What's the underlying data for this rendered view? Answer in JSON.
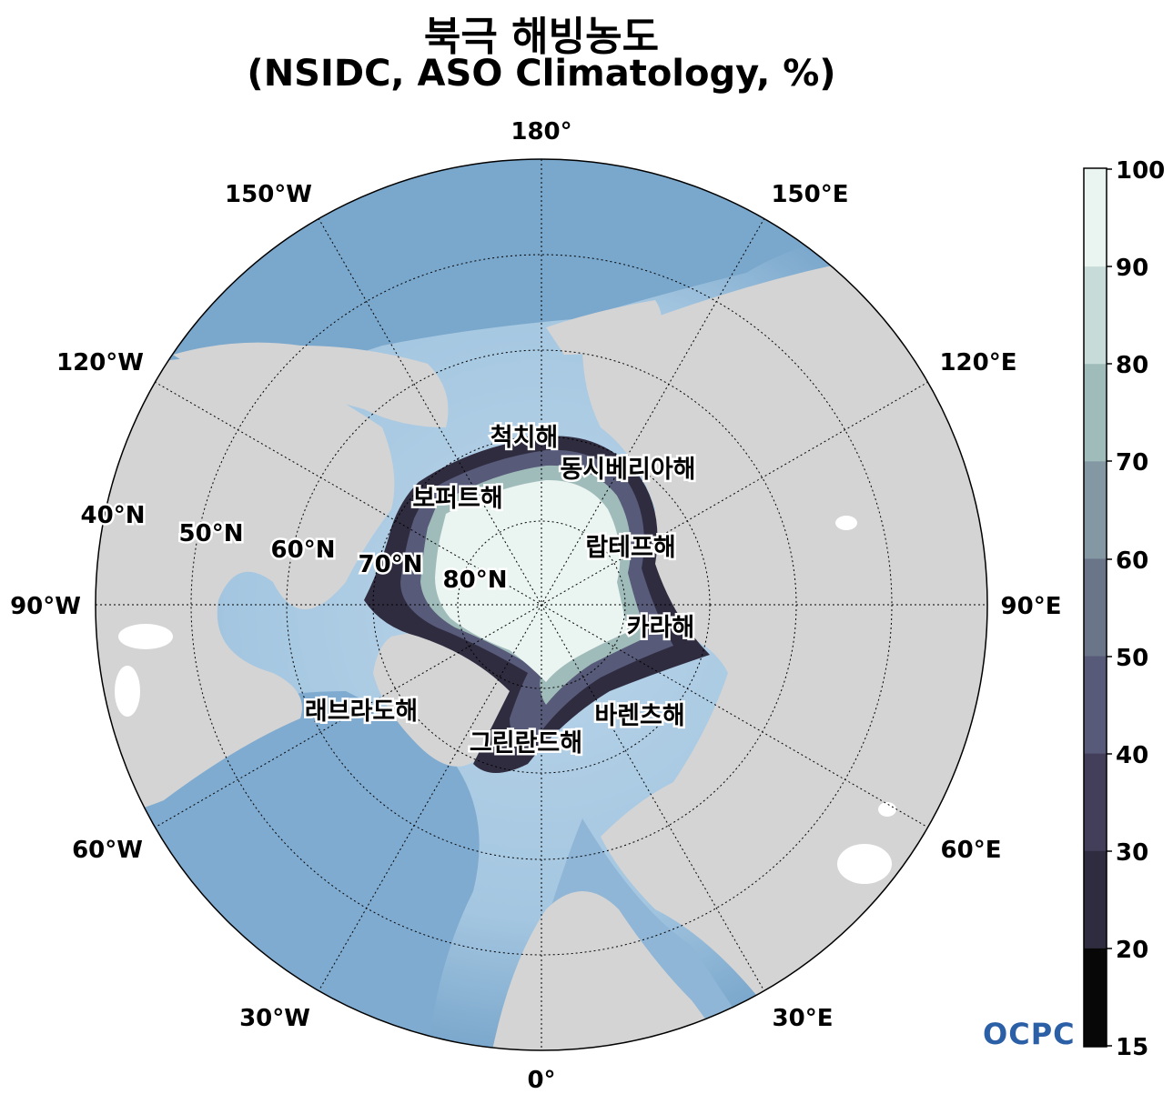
{
  "title": {
    "line1": "북극 해빙농도",
    "line2": "(NSIDC, ASO Climatology, %)"
  },
  "map": {
    "longitude_labels": [
      "180°",
      "150°E",
      "120°E",
      "90°E",
      "60°E",
      "30°E",
      "0°",
      "30°W",
      "60°W",
      "90°W",
      "120°W",
      "150°W"
    ],
    "latitude_labels": [
      "40°N",
      "50°N",
      "60°N",
      "70°N",
      "80°N"
    ],
    "sea_labels": [
      "척치해",
      "동시베리아해",
      "보퍼트해",
      "랍테프해",
      "카라해",
      "바렌츠해",
      "그린란드해",
      "래브라도해"
    ],
    "colors": {
      "ocean_deep": "#7aa7cc",
      "ocean_shallow": "#b9d5ea",
      "land": "#d4d4d4",
      "ice_high": "#eaf4f1"
    }
  },
  "colorbar": {
    "ticks": [
      "100",
      "90",
      "80",
      "70",
      "60",
      "50",
      "40",
      "30",
      "20",
      "15"
    ],
    "colors": [
      "#eaf4f1",
      "#c7dcd8",
      "#a0bcba",
      "#8498a4",
      "#6b7589",
      "#575a78",
      "#433f5a",
      "#2f2c40",
      "#1a1a22",
      "#070707"
    ]
  },
  "logo": {
    "text": "OCPC",
    "color": "#2b5fa6"
  }
}
